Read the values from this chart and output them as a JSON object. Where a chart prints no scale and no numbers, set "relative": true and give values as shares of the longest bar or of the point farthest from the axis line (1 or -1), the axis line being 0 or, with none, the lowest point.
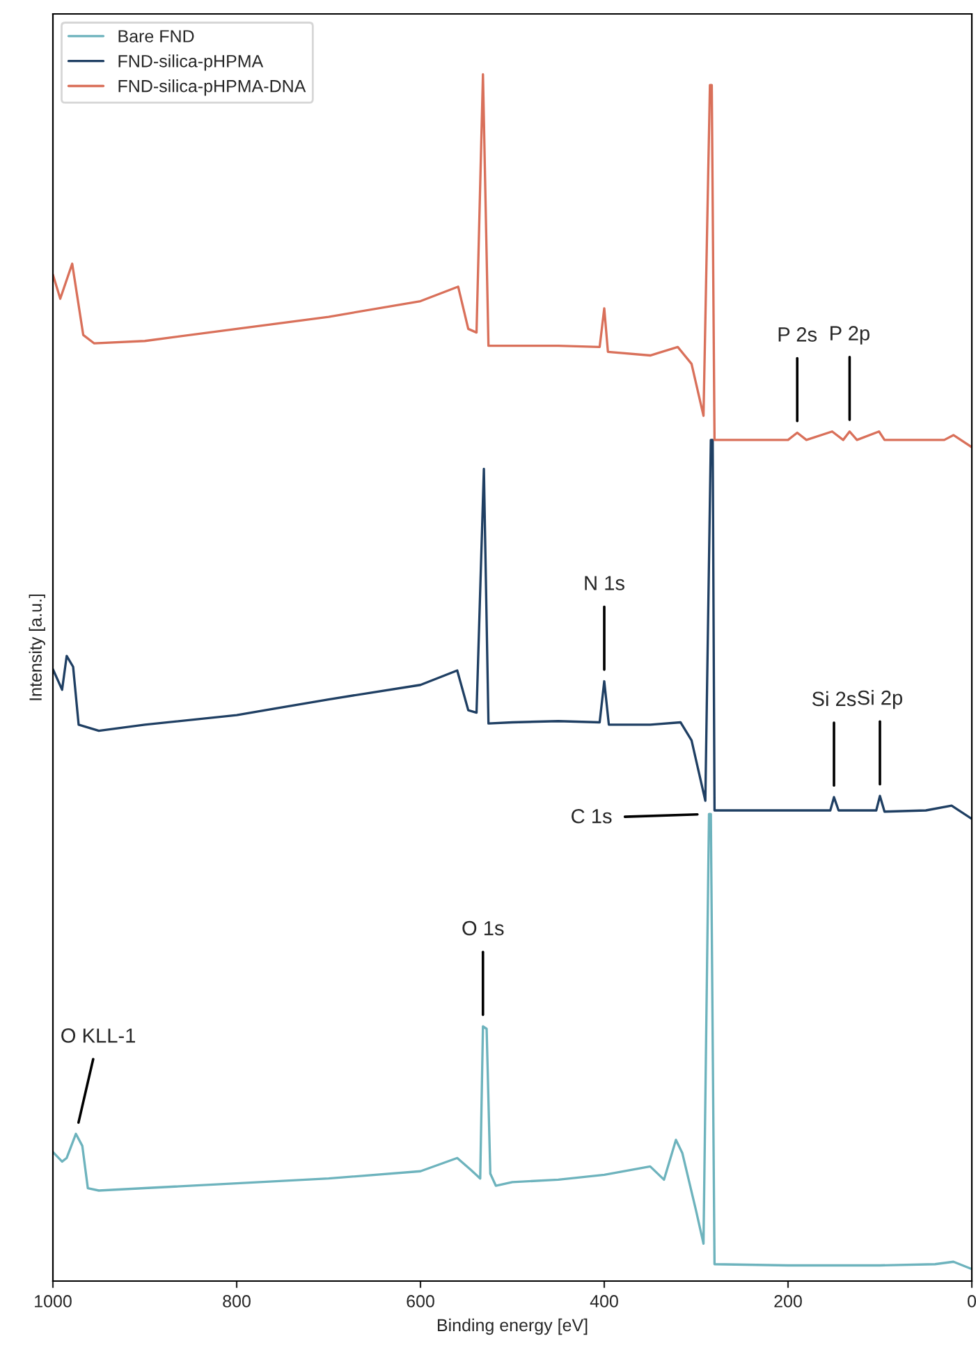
{
  "chart_data": {
    "type": "line",
    "relative": true,
    "xlabel": "Binding energy [eV]",
    "ylabel": "Intensity [a.u.]",
    "xlim": [
      1000,
      0
    ],
    "xticks": [
      1000,
      800,
      600,
      400,
      200,
      0
    ],
    "legend": "top left",
    "grid": false,
    "marker": "none",
    "line_style": "solid",
    "series": [
      {
        "name": "Bare FND",
        "color": "#6db3bd",
        "x": [
          1000,
          990,
          985,
          975,
          968,
          962,
          950,
          900,
          800,
          700,
          600,
          560,
          545,
          535,
          532,
          528,
          524,
          518,
          500,
          450,
          400,
          350,
          335,
          322,
          315,
          300,
          292,
          286,
          284,
          280,
          200,
          100,
          40,
          20,
          0
        ],
        "values": [
          0.107,
          0.099,
          0.102,
          0.122,
          0.112,
          0.077,
          0.075,
          0.077,
          0.081,
          0.085,
          0.091,
          0.102,
          0.092,
          0.085,
          0.211,
          0.209,
          0.089,
          0.079,
          0.082,
          0.084,
          0.088,
          0.095,
          0.084,
          0.117,
          0.106,
          0.058,
          0.031,
          0.387,
          0.387,
          0.014,
          0.013,
          0.013,
          0.014,
          0.016,
          0.01
        ]
      },
      {
        "name": "FND-silica-pHPMA",
        "color": "#1f3f63",
        "x": [
          1000,
          990,
          985,
          978,
          972,
          950,
          900,
          800,
          700,
          600,
          560,
          548,
          539,
          531,
          526,
          500,
          450,
          405,
          400,
          395,
          350,
          317,
          305,
          290,
          284,
          282,
          280,
          200,
          154,
          150,
          145,
          104,
          100,
          95,
          50,
          22,
          0
        ],
        "values": [
          0.507,
          0.49,
          0.518,
          0.509,
          0.461,
          0.456,
          0.461,
          0.469,
          0.482,
          0.494,
          0.506,
          0.473,
          0.471,
          0.673,
          0.462,
          0.463,
          0.464,
          0.463,
          0.497,
          0.461,
          0.461,
          0.463,
          0.448,
          0.398,
          0.697,
          0.697,
          0.39,
          0.39,
          0.39,
          0.401,
          0.39,
          0.39,
          0.402,
          0.389,
          0.39,
          0.394,
          0.383
        ]
      },
      {
        "name": "FND-silica-pHPMA-DNA",
        "color": "#d9705a",
        "x": [
          1000,
          992,
          979,
          967,
          955,
          900,
          800,
          700,
          600,
          559,
          548,
          539,
          532,
          526,
          500,
          450,
          405,
          400,
          396,
          350,
          320,
          305,
          292,
          285,
          283,
          280,
          200,
          190,
          180,
          152,
          140,
          133,
          125,
          101,
          95,
          30,
          20,
          0
        ],
        "values": [
          0.834,
          0.814,
          0.843,
          0.784,
          0.777,
          0.779,
          0.789,
          0.799,
          0.812,
          0.824,
          0.789,
          0.786,
          1,
          0.775,
          0.775,
          0.775,
          0.774,
          0.806,
          0.77,
          0.767,
          0.774,
          0.76,
          0.717,
          0.991,
          0.991,
          0.697,
          0.697,
          0.703,
          0.697,
          0.704,
          0.697,
          0.704,
          0.697,
          0.704,
          0.697,
          0.697,
          0.701,
          0.691
        ]
      }
    ],
    "annotations": [
      {
        "text": "P 2s",
        "x": 190,
        "y": 0.703
      },
      {
        "text": "P 2p",
        "x": 133,
        "y": 0.704
      },
      {
        "text": "N 1s",
        "x": 400,
        "y": 0.497
      },
      {
        "text": "Si 2s",
        "x": 150,
        "y": 0.401
      },
      {
        "text": "Si 2p",
        "x": 100,
        "y": 0.402
      },
      {
        "text": "C 1s",
        "x": 286,
        "y": 0.387
      },
      {
        "text": "O 1s",
        "x": 532,
        "y": 0.211
      },
      {
        "text": "O KLL-1",
        "x": 975,
        "y": 0.122
      }
    ]
  }
}
